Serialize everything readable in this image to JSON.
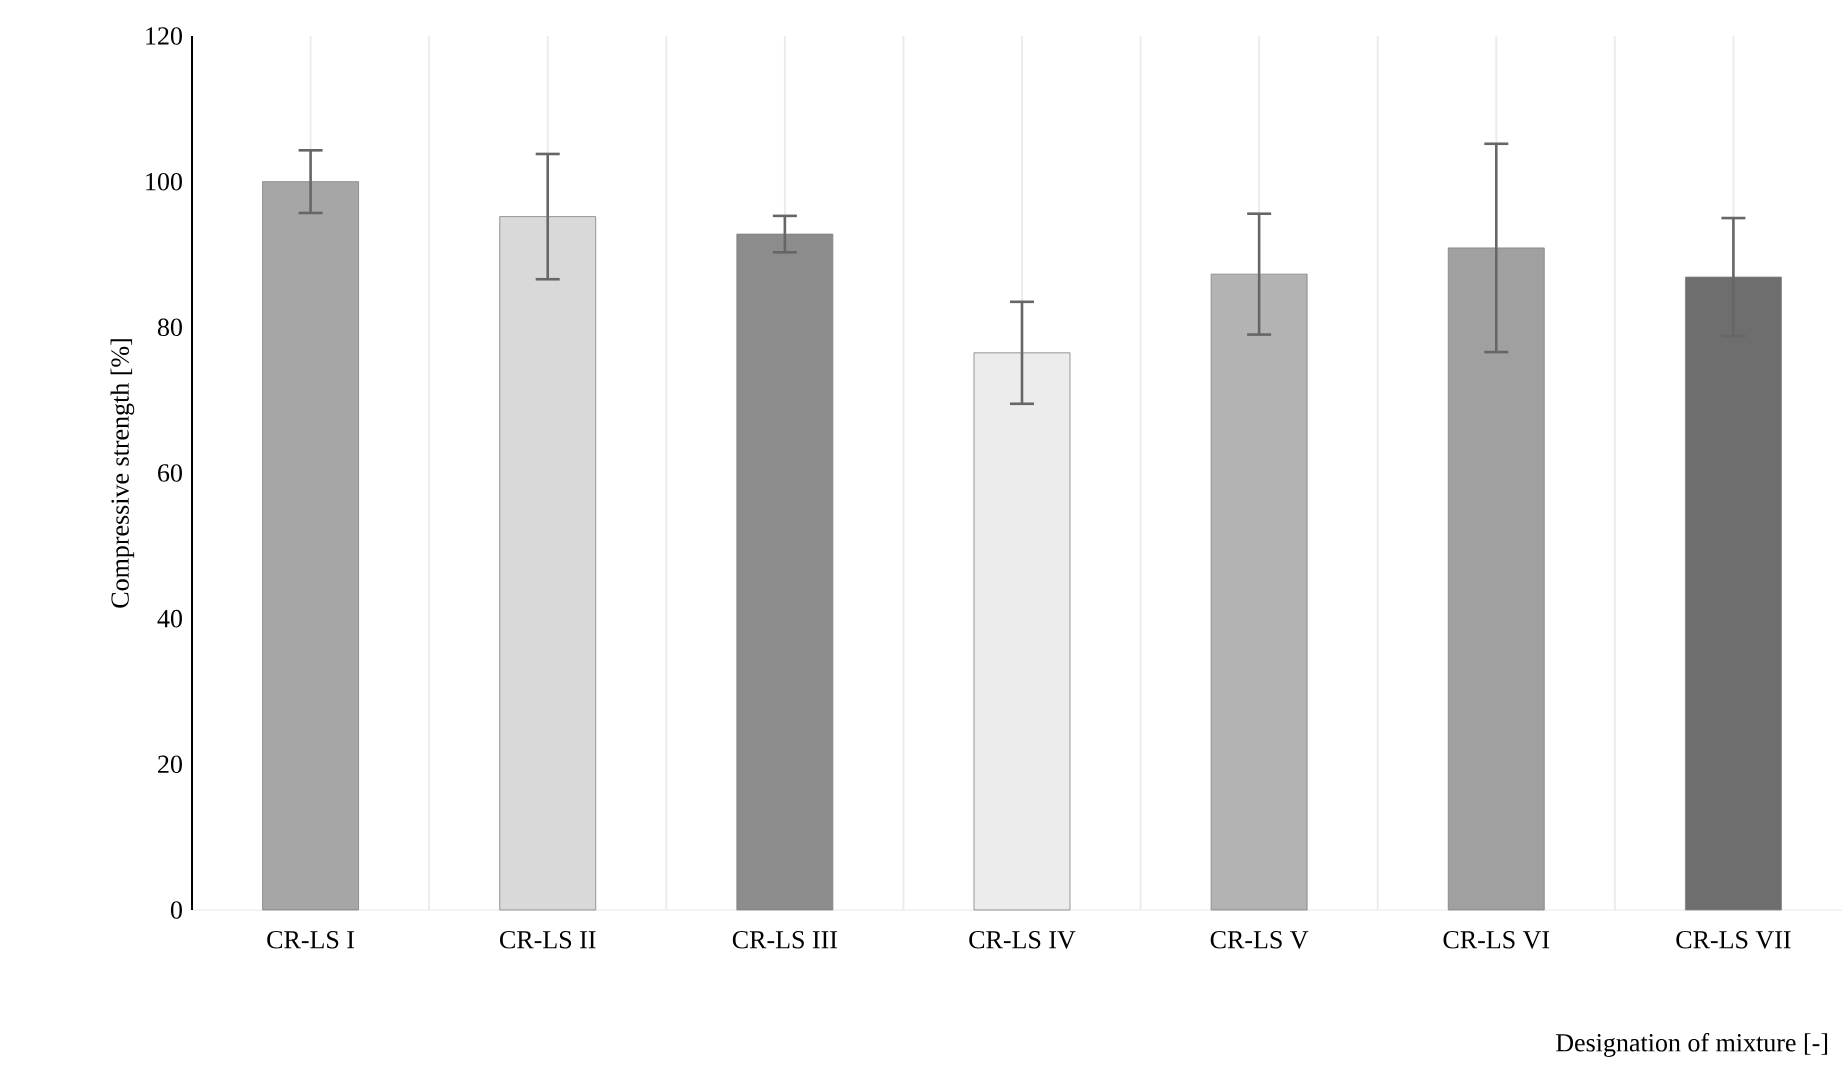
{
  "chart_data": {
    "type": "bar",
    "xlabel": "Designation of mixture [-]",
    "ylabel": "Compressive strength [%]",
    "categories": [
      "CR-LS I",
      "CR-LS II",
      "CR-LS III",
      "CR-LS IV",
      "CR-LS V",
      "CR-LS VI",
      "CR-LS VII"
    ],
    "values": [
      100,
      95.2,
      92.8,
      76.5,
      87.3,
      90.9,
      86.9
    ],
    "errors": [
      4.3,
      8.6,
      2.5,
      7,
      8.3,
      14.3,
      8.1
    ],
    "colors": [
      "#a6a6a6",
      "#d9d9d9",
      "#8c8c8c",
      "#ececec",
      "#b3b3b3",
      "#a0a0a0",
      "#6e6e6e"
    ],
    "ylim": [
      0,
      120
    ],
    "yticks": [
      0,
      20,
      40,
      60,
      80,
      100,
      120
    ],
    "grid": "x"
  }
}
